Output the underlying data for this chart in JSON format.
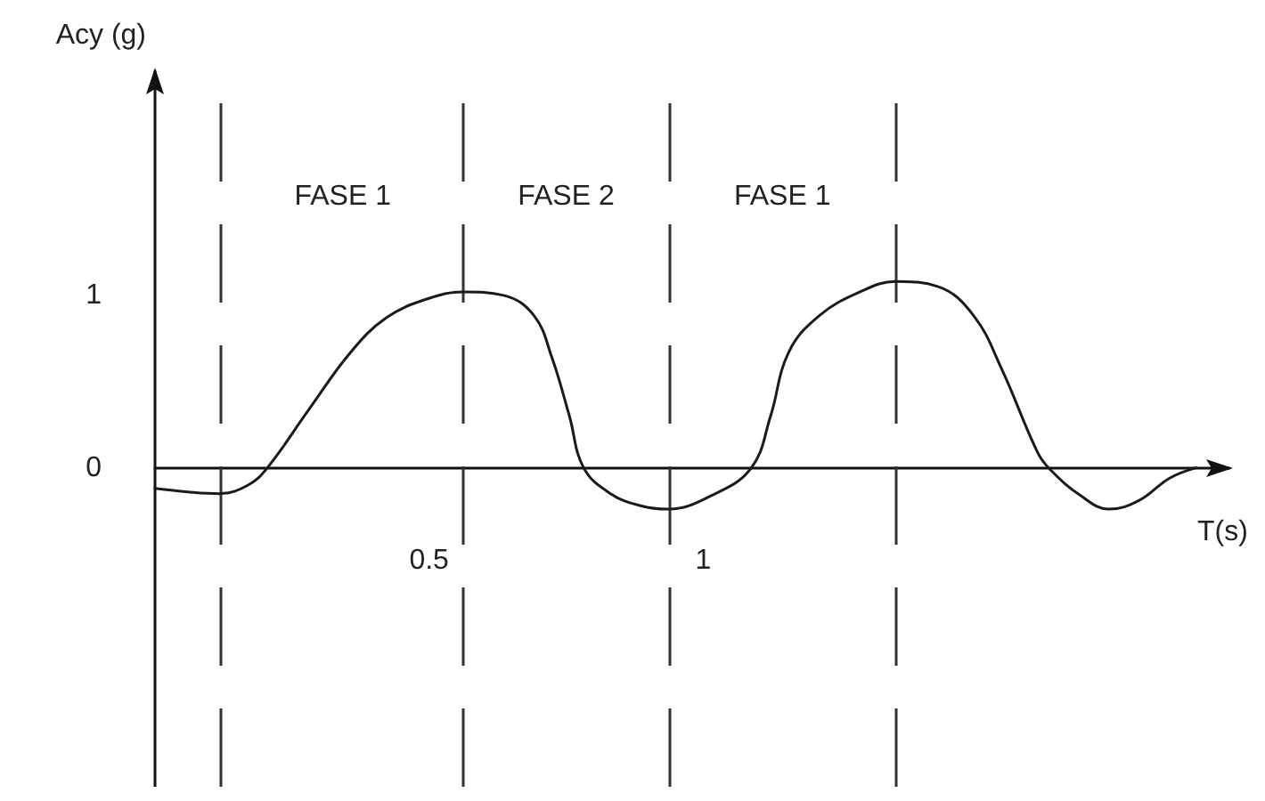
{
  "chart_data": {
    "type": "line",
    "xlabel": "T(s)",
    "ylabel": "Acy (g)",
    "x": [
      0,
      0.06,
      0.117,
      0.17,
      0.205,
      0.279,
      0.357,
      0.422,
      0.497,
      0.562,
      0.636,
      0.692,
      0.724,
      0.756,
      0.782,
      0.831,
      0.886,
      0.935,
      1.016,
      1.088,
      1.123,
      1.156,
      1.211,
      1.286,
      1.351,
      1.429,
      1.494,
      1.545,
      1.61,
      1.633,
      1.688,
      1.74,
      1.795,
      1.851,
      1.899
    ],
    "values": [
      -0.12,
      -0.14,
      -0.15,
      -0.1,
      0,
      0.33,
      0.67,
      0.87,
      0.98,
      1.02,
      1,
      0.88,
      0.64,
      0.3,
      0,
      -0.15,
      -0.22,
      -0.24,
      -0.16,
      0,
      0.3,
      0.67,
      0.88,
      1.02,
      1.08,
      1.05,
      0.88,
      0.57,
      0.09,
      -0.01,
      -0.16,
      -0.24,
      -0.19,
      -0.06,
      0
    ],
    "color": "#1a1a1a",
    "marker": "none",
    "line_style": "solid",
    "xlim": [
      0,
      1.96
    ],
    "xticks": [
      0.5,
      1
    ],
    "ylim": [
      -1.85,
      2.3
    ],
    "yticks": [
      0,
      1
    ],
    "ref_lines": [
      {
        "axis": "x",
        "value": 0.12,
        "line_style": "dashed",
        "color": "#333333"
      },
      {
        "axis": "x",
        "value": 0.565,
        "line_style": "dashed",
        "color": "#333333"
      },
      {
        "axis": "x",
        "value": 0.935,
        "line_style": "dashed",
        "color": "#333333"
      },
      {
        "axis": "x",
        "value": 1.354,
        "line_style": "dashed",
        "color": "#333333"
      }
    ],
    "annotations": [
      "FASE 1",
      "FASE 2",
      "FASE 1"
    ]
  }
}
